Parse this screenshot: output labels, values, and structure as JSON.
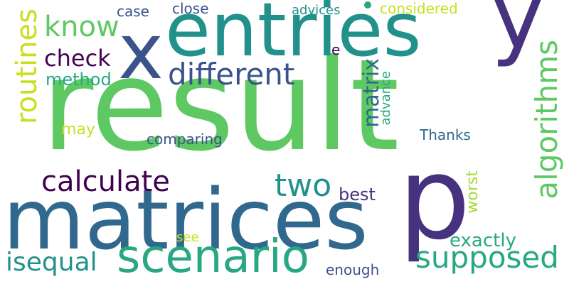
{
  "words": {
    "result": "result",
    "matrices": "matrices",
    "p": "p",
    "entries": "entries",
    "y": "y",
    "x": "x",
    "scenario": "scenario",
    "different": "different",
    "calculate": "calculate",
    "two": "two",
    "supposed": "supposed",
    "algorithms": "algorithms",
    "routines": "routines",
    "matrix": "matrix",
    "know": "know",
    "check": "check",
    "method": "method",
    "isequal": "isequal",
    "exactly": "exactly",
    "best": "best",
    "may": "may",
    "comparing": "comparing",
    "thanks": "Thanks",
    "worst": "worst",
    "advance": "advance",
    "case": "case",
    "close": "close",
    "advices": "advices",
    "considered": "considered",
    "e": "e",
    "see": "see",
    "enough": "enough"
  },
  "colors": {
    "green": "#5ec962",
    "teal": "#21918c",
    "seagreen": "#27a882",
    "blue": "#3b528b",
    "darkblue": "#31688e",
    "purple": "#46327e",
    "darkpurple": "#440154",
    "yellow": "#c8e020",
    "lime": "#a8db34"
  }
}
